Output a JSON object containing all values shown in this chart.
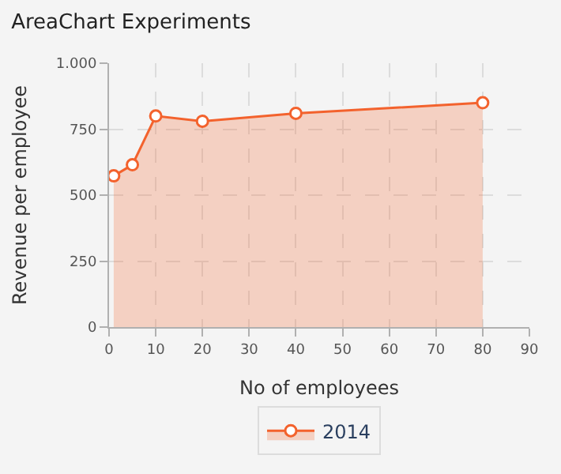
{
  "chart_data": {
    "type": "area",
    "title": "AreaChart Experiments",
    "xlabel": "No of employees",
    "ylabel": "Revenue per employee",
    "x": [
      1,
      5,
      10,
      20,
      40,
      80
    ],
    "series": [
      {
        "name": "2014",
        "color": "#f3622d",
        "values": [
          573,
          615,
          800,
          780,
          810,
          850
        ]
      }
    ],
    "xlim": [
      0,
      90
    ],
    "xticks": [
      0,
      10,
      20,
      30,
      40,
      50,
      60,
      70,
      80,
      90
    ],
    "ylim": [
      0,
      1000
    ],
    "yticks": [
      0,
      250,
      500,
      750,
      {
        "value": 1000,
        "label": "1.000"
      }
    ],
    "grid": true,
    "legend": "bottom",
    "marker": "circle",
    "line_style": "solid"
  }
}
